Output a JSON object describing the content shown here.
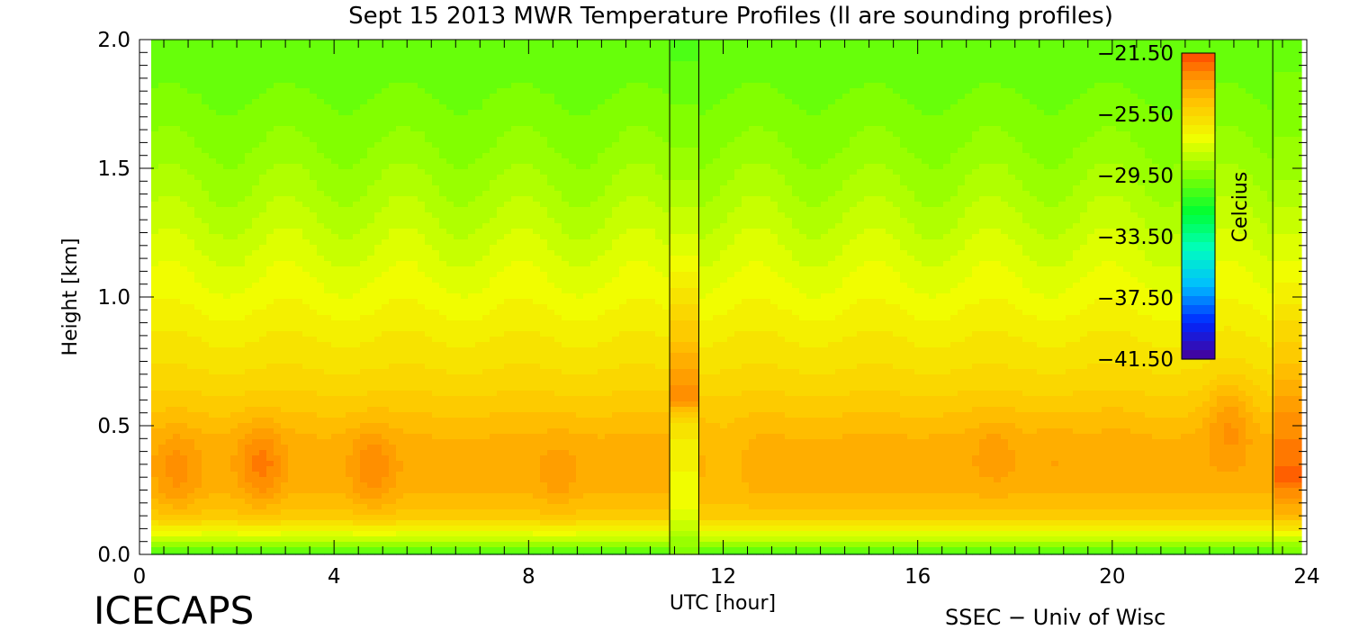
{
  "chart_data": {
    "type": "heatmap",
    "title": "Sept 15 2013 MWR Temperature Profiles (ll are sounding profiles)",
    "xlabel": "UTC [hour]",
    "ylabel": "Height [km]",
    "xlim": [
      0,
      24
    ],
    "ylim": [
      0,
      2
    ],
    "x_ticks": [
      0,
      4,
      8,
      12,
      16,
      20,
      24
    ],
    "y_ticks": [
      0.0,
      0.5,
      1.0,
      1.5,
      2.0
    ],
    "x_tick_labels": [
      "0",
      "4",
      "8",
      "12",
      "16",
      "20",
      "24"
    ],
    "y_tick_labels": [
      "0.0",
      "0.5",
      "1.0",
      "1.5",
      "2.0"
    ],
    "sounding_profiles_utc": [
      10.9,
      11.5,
      23.3
    ],
    "colorbar": {
      "label": "Celcius",
      "range": [
        -41.5,
        -21.5
      ],
      "ticks": [
        -21.5,
        -25.5,
        -29.5,
        -33.5,
        -37.5,
        -41.5
      ],
      "tick_labels": [
        "−21.50",
        "−25.50",
        "−29.50",
        "−33.50",
        "−37.50",
        "−41.50"
      ]
    },
    "background_temperature_profile": {
      "height_km": [
        0.0,
        0.05,
        0.1,
        0.15,
        0.25,
        0.35,
        0.45,
        0.55,
        0.65,
        0.75,
        0.85,
        1.0,
        1.2,
        1.4,
        1.6,
        1.8,
        2.0
      ],
      "temp_c": [
        -30.5,
        -28.5,
        -26.5,
        -25.0,
        -24.2,
        -24.0,
        -24.2,
        -24.8,
        -25.4,
        -25.9,
        -26.3,
        -27.0,
        -27.8,
        -28.6,
        -29.3,
        -29.8,
        -30.2
      ]
    },
    "warm_anomalies": [
      {
        "time_utc": 0.8,
        "height_km": 0.32,
        "temp_c": -23.0
      },
      {
        "time_utc": 2.5,
        "height_km": 0.35,
        "temp_c": -22.5
      },
      {
        "time_utc": 4.8,
        "height_km": 0.33,
        "temp_c": -22.8
      },
      {
        "time_utc": 6.8,
        "height_km": 0.35,
        "temp_c": -24.0
      },
      {
        "time_utc": 8.6,
        "height_km": 0.3,
        "temp_c": -23.5
      },
      {
        "time_utc": 12.0,
        "height_km": 0.38,
        "temp_c": -24.5
      },
      {
        "time_utc": 16.8,
        "height_km": 0.4,
        "temp_c": -24.0
      },
      {
        "time_utc": 17.6,
        "height_km": 0.4,
        "temp_c": -23.5
      },
      {
        "time_utc": 18.8,
        "height_km": 0.4,
        "temp_c": -23.8
      },
      {
        "time_utc": 20.1,
        "height_km": 0.45,
        "temp_c": -24.0
      },
      {
        "time_utc": 22.4,
        "height_km": 0.52,
        "temp_c": -23.3
      }
    ],
    "sounding_profile": {
      "height_km": [
        0.0,
        0.05,
        0.1,
        0.15,
        0.2,
        0.3,
        0.4,
        0.5,
        0.55,
        0.6,
        0.7,
        0.8,
        1.0,
        1.2,
        1.5,
        2.0
      ],
      "temp_c": [
        -29.5,
        -29.0,
        -28.0,
        -27.5,
        -27.0,
        -26.8,
        -26.5,
        -26.0,
        -25.0,
        -23.0,
        -23.5,
        -24.5,
        -26.0,
        -27.5,
        -29.0,
        -30.5
      ]
    },
    "end_column_profile": {
      "height_km": [
        0.0,
        0.05,
        0.1,
        0.15,
        0.2,
        0.3,
        0.4,
        0.5,
        0.6,
        0.7,
        0.8,
        1.0,
        1.2,
        1.5,
        2.0
      ],
      "temp_c": [
        -30.0,
        -28.5,
        -26.0,
        -24.5,
        -23.5,
        -22.0,
        -22.5,
        -23.0,
        -23.5,
        -24.5,
        -25.0,
        -26.5,
        -27.5,
        -29.0,
        -30.0
      ]
    }
  },
  "footer": {
    "left": "ICECAPS",
    "right": "SSEC − Univ of Wisc"
  }
}
